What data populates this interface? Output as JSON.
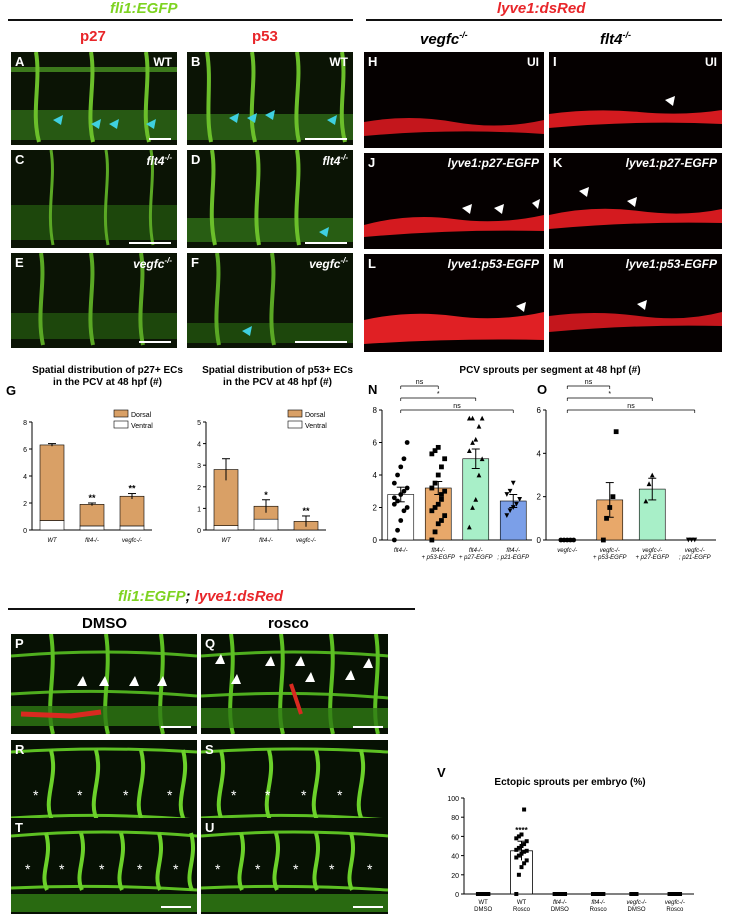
{
  "headers": {
    "fli1": "fli1:EGFP",
    "lyve1": "lyve1:dsRed",
    "combo_a": "fli1:EGFP",
    "combo_sep": "; ",
    "combo_b": "lyve1:dsRed"
  },
  "columns": {
    "p27": "p27",
    "p53": "p53",
    "vegfc": "vegfc",
    "flt4": "flt4",
    "dmso": "DMSO",
    "rosco": "rosco",
    "sup": "-/-"
  },
  "panels": {
    "A": {
      "label": "A",
      "tag": "WT"
    },
    "B": {
      "label": "B",
      "tag": "WT"
    },
    "C": {
      "label": "C",
      "tag": "flt4"
    },
    "D": {
      "label": "D",
      "tag": "flt4"
    },
    "E": {
      "label": "E",
      "tag": "vegfc"
    },
    "F": {
      "label": "F",
      "tag": "vegfc"
    },
    "H": {
      "label": "H",
      "tag": "UI"
    },
    "I": {
      "label": "I",
      "tag": "UI"
    },
    "J": {
      "label": "J",
      "tag": "lyve1:p27-EGFP"
    },
    "K": {
      "label": "K",
      "tag": "lyve1:p27-EGFP"
    },
    "L": {
      "label": "L",
      "tag": "lyve1:p53-EGFP"
    },
    "M": {
      "label": "M",
      "tag": "lyve1:p53-EGFP"
    },
    "P": {
      "label": "P"
    },
    "Q": {
      "label": "Q"
    },
    "R": {
      "label": "R"
    },
    "S": {
      "label": "S"
    },
    "T": {
      "label": "T"
    },
    "U": {
      "label": "U"
    }
  },
  "figure_labels": {
    "G": "G",
    "N": "N",
    "O": "O",
    "V": "V"
  },
  "chart_titles": {
    "g1_line1": "Spatial distribution of p27+ ECs",
    "g1_line2": "in the PCV at 48 hpf (#)",
    "g2_line1": "Spatial distribution of p53+ ECs",
    "g2_line2": "in the PCV at 48 hpf (#)",
    "no": "PCV sprouts per segment at 48 hpf  (#)",
    "v": "Ectopic sprouts per embryo (%)"
  },
  "chart_data": [
    {
      "id": "G1",
      "type": "bar",
      "stacked": true,
      "title": "",
      "categories": [
        "WT",
        "flt4-/-",
        "vegfc-/-"
      ],
      "series": [
        {
          "name": "Ventral",
          "values": [
            0.7,
            0.3,
            0.3
          ],
          "color": "#ffffff"
        },
        {
          "name": "Dorsal",
          "values": [
            5.6,
            1.6,
            2.2
          ],
          "color": "#d9a066"
        }
      ],
      "errors": [
        0.1,
        0.1,
        0.2
      ],
      "annotations": [
        "",
        "**",
        "**"
      ],
      "yticks": [
        0,
        2,
        4,
        6,
        8
      ],
      "ylim": [
        0,
        8
      ],
      "legend": "top-right"
    },
    {
      "id": "G2",
      "type": "bar",
      "stacked": true,
      "title": "",
      "categories": [
        "WT",
        "flt4-/-",
        "vegfc-/-"
      ],
      "series": [
        {
          "name": "Ventral",
          "values": [
            0.2,
            0.5,
            0.0
          ],
          "color": "#ffffff"
        },
        {
          "name": "Dorsal",
          "values": [
            2.6,
            0.6,
            0.4
          ],
          "color": "#d9a066"
        }
      ],
      "errors": [
        0.5,
        0.3,
        0.25
      ],
      "annotations": [
        "",
        "*",
        "**"
      ],
      "yticks": [
        0,
        1,
        2,
        3,
        4,
        5
      ],
      "ylim": [
        0,
        5
      ],
      "legend": "top-right"
    },
    {
      "id": "N",
      "type": "bar",
      "categories": [
        "flt4-/-",
        "flt4-/- + p53-EGFP",
        "flt4-/- + p27-EGFP",
        "flt4-/-; p21-EGFP"
      ],
      "values": [
        2.8,
        3.2,
        5.0,
        2.4
      ],
      "errors": [
        0.45,
        0.4,
        0.6,
        0.4
      ],
      "colors": [
        "#ffffff",
        "#e8a86a",
        "#a8efc8",
        "#7b9fe8"
      ],
      "markers": [
        "circle",
        "square",
        "triangle",
        "triangle-down"
      ],
      "points": [
        [
          0,
          0.6,
          1.2,
          1.8,
          2.0,
          2.2,
          2.4,
          2.8,
          3.0,
          3.2,
          3.5,
          4.0,
          4.5,
          5.0,
          6.0,
          2.6
        ],
        [
          0,
          0.5,
          1.0,
          1.2,
          1.5,
          1.8,
          2.0,
          2.2,
          2.5,
          3.0,
          3.2,
          3.5,
          4.0,
          4.5,
          5.0,
          5.3,
          5.5,
          5.7,
          2.8
        ],
        [
          0.8,
          2.0,
          2.5,
          4.0,
          5.0,
          5.5,
          6.0,
          6.2,
          7.0,
          7.5,
          7.5,
          7.5
        ],
        [
          1.5,
          1.8,
          2.0,
          2.2,
          2.5,
          2.8,
          3.0,
          3.5
        ]
      ],
      "brackets": [
        {
          "from": 0,
          "to": 1,
          "label": "ns"
        },
        {
          "from": 0,
          "to": 2,
          "label": "*"
        },
        {
          "from": 0,
          "to": 3,
          "label": "ns"
        }
      ],
      "yticks": [
        0,
        2,
        4,
        6,
        8
      ],
      "ylim": [
        0,
        8
      ]
    },
    {
      "id": "O",
      "type": "bar",
      "categories": [
        "vegfc-/-",
        "vegfc-/- + p53-EGFP",
        "vegfc-/- + p27-EGFP",
        "vegfc-/-; p21-EGFP"
      ],
      "values": [
        0,
        1.85,
        2.35,
        0
      ],
      "errors": [
        0,
        0.8,
        0.5,
        0
      ],
      "colors": [
        "#ffffff",
        "#e8a86a",
        "#a8efc8",
        "#7b9fe8"
      ],
      "markers": [
        "circle",
        "square",
        "triangle",
        "triangle-down"
      ],
      "points": [
        [
          0,
          0,
          0,
          0,
          0
        ],
        [
          0,
          1.0,
          1.5,
          2.0,
          5.0
        ],
        [
          1.8,
          2.6,
          3.0
        ],
        [
          0,
          0,
          0
        ]
      ],
      "brackets": [
        {
          "from": 0,
          "to": 1,
          "label": "ns"
        },
        {
          "from": 0,
          "to": 2,
          "label": "*"
        },
        {
          "from": 0,
          "to": 3,
          "label": "ns"
        }
      ],
      "yticks": [
        0,
        2,
        4,
        6
      ],
      "ylim": [
        0,
        6
      ]
    },
    {
      "id": "V",
      "type": "bar",
      "categories": [
        "WT DMSO",
        "WT Rosco",
        "flt4-/- DMSO",
        "flt4-/- Rosco",
        "vegfc-/- DMSO",
        "vegfc-/- Rosco"
      ],
      "values": [
        0,
        45,
        0,
        0,
        0,
        0
      ],
      "errors": [
        0,
        10,
        0,
        0,
        0,
        0
      ],
      "annotations": [
        "",
        "****",
        "",
        "",
        "",
        ""
      ],
      "points": [
        [
          0,
          0,
          0,
          0,
          0,
          0,
          0
        ],
        [
          0,
          20,
          28,
          32,
          35,
          38,
          40,
          42,
          44,
          45,
          46,
          48,
          50,
          52,
          55,
          58,
          60,
          62,
          88
        ],
        [
          0,
          0,
          0,
          0,
          0
        ],
        [
          0,
          0,
          0,
          0,
          0
        ],
        [
          0,
          0,
          0
        ],
        [
          0,
          0,
          0,
          0,
          0,
          0,
          0,
          0
        ]
      ],
      "yticks": [
        0,
        20,
        40,
        60,
        80,
        100
      ],
      "ylim": [
        0,
        100
      ]
    }
  ]
}
